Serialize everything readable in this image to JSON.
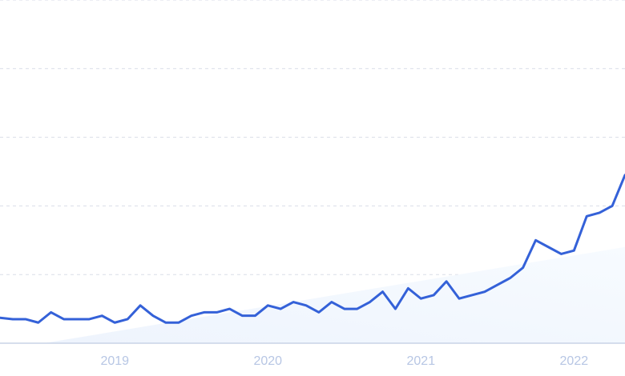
{
  "chart_data": {
    "type": "line",
    "title": "",
    "xlabel": "",
    "ylabel": "",
    "x_ticks": [
      "2019",
      "2020",
      "2021",
      "2022"
    ],
    "x_range": [
      "2018-04",
      "2022-05"
    ],
    "y_range": [
      0,
      5
    ],
    "grid": "horizontal-dashed",
    "trend_area": true,
    "colors": {
      "line": "#3461d8",
      "trend_fill_start": "#eef4fd",
      "trend_fill_end": "#f7fbff",
      "grid": "#d9dee8",
      "tick_label": "#b7c6e4"
    },
    "series": [
      {
        "x": [
          "2018-04",
          "2018-05",
          "2018-06",
          "2018-07",
          "2018-08",
          "2018-09",
          "2018-10",
          "2018-11",
          "2018-12",
          "2019-01",
          "2019-02",
          "2019-03",
          "2019-04",
          "2019-05",
          "2019-06",
          "2019-07",
          "2019-08",
          "2019-09",
          "2019-10",
          "2019-11",
          "2019-12",
          "2020-01",
          "2020-02",
          "2020-03",
          "2020-04",
          "2020-05",
          "2020-06",
          "2020-07",
          "2020-08",
          "2020-09",
          "2020-10",
          "2020-11",
          "2020-12",
          "2021-01",
          "2021-02",
          "2021-03",
          "2021-04",
          "2021-05",
          "2021-06",
          "2021-07",
          "2021-08",
          "2021-09",
          "2021-10",
          "2021-11",
          "2021-12",
          "2022-01",
          "2022-02",
          "2022-03",
          "2022-04",
          "2022-05"
        ],
        "y": [
          0.37,
          0.35,
          0.35,
          0.3,
          0.45,
          0.35,
          0.35,
          0.35,
          0.4,
          0.3,
          0.35,
          0.55,
          0.4,
          0.3,
          0.3,
          0.4,
          0.45,
          0.45,
          0.5,
          0.4,
          0.4,
          0.55,
          0.5,
          0.6,
          0.55,
          0.45,
          0.6,
          0.5,
          0.5,
          0.6,
          0.75,
          0.5,
          0.8,
          0.65,
          0.7,
          0.9,
          0.65,
          0.7,
          0.75,
          0.85,
          0.95,
          1.1,
          1.5,
          1.4,
          1.3,
          1.35,
          1.85,
          1.9,
          2.0,
          2.45
        ]
      }
    ]
  }
}
